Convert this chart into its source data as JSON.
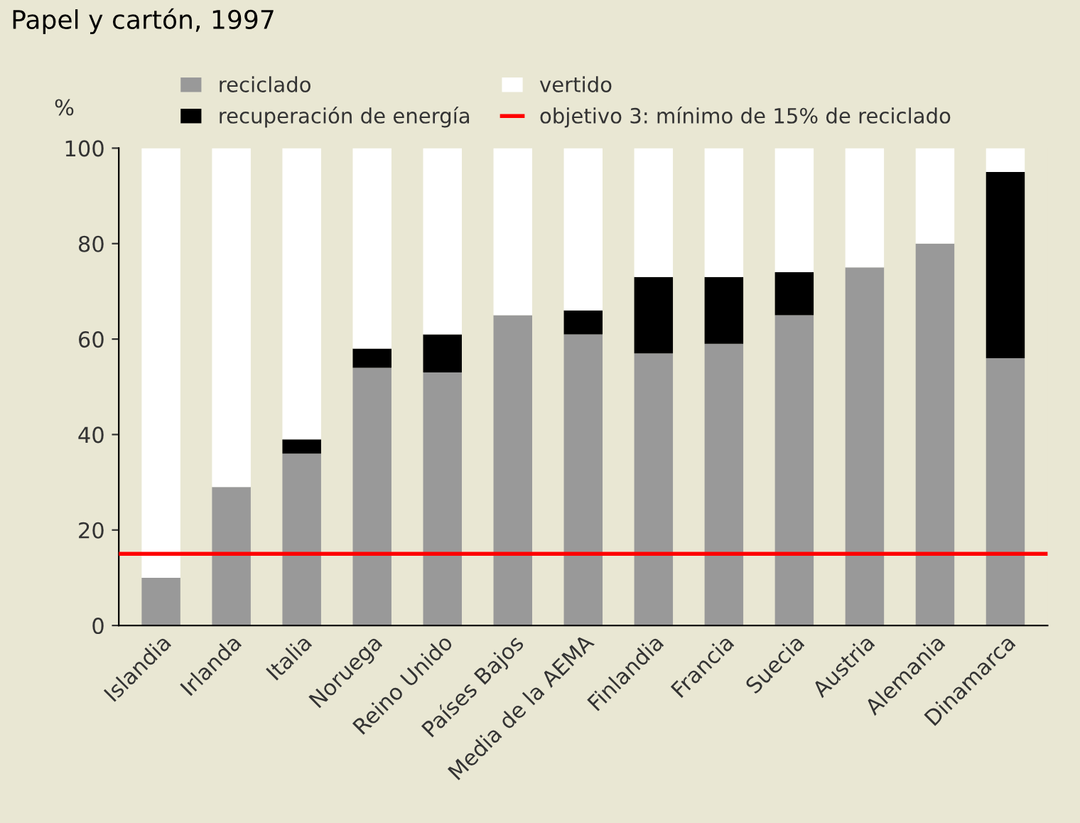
{
  "chart_data": {
    "type": "bar",
    "title": "Papel y cartón, 1997",
    "ylabel": "%",
    "categories": [
      "Islandia",
      "Irlanda",
      "Italia",
      "Noruega",
      "Reino Unido",
      "Países Bajos",
      "Media de la AEMA",
      "Finlandia",
      "Francia",
      "Suecia",
      "Austria",
      "Alemania",
      "Dinamarca"
    ],
    "stacked": true,
    "series": [
      {
        "name": "reciclado",
        "color": "#999999",
        "values": [
          10,
          29,
          36,
          54,
          53,
          65,
          61,
          57,
          59,
          65,
          75,
          80,
          56
        ]
      },
      {
        "name": "recuperación de energía",
        "color": "#000000",
        "values": [
          0,
          0,
          3,
          4,
          8,
          0,
          5,
          16,
          14,
          9,
          0,
          0,
          39
        ]
      },
      {
        "name": "vertido",
        "color": "#ffffff",
        "values": [
          90,
          71,
          61,
          42,
          39,
          35,
          34,
          27,
          27,
          26,
          25,
          20,
          5
        ]
      }
    ],
    "ylim": [
      0,
      100
    ],
    "yticks": [
      0,
      20,
      40,
      60,
      80,
      100
    ],
    "ref_lines": [
      {
        "axis": "y",
        "value": 15,
        "label": "objetivo 3: mínimo de 15% de reciclado",
        "color": "#ff0000"
      }
    ],
    "legend": "top",
    "grid": false
  }
}
